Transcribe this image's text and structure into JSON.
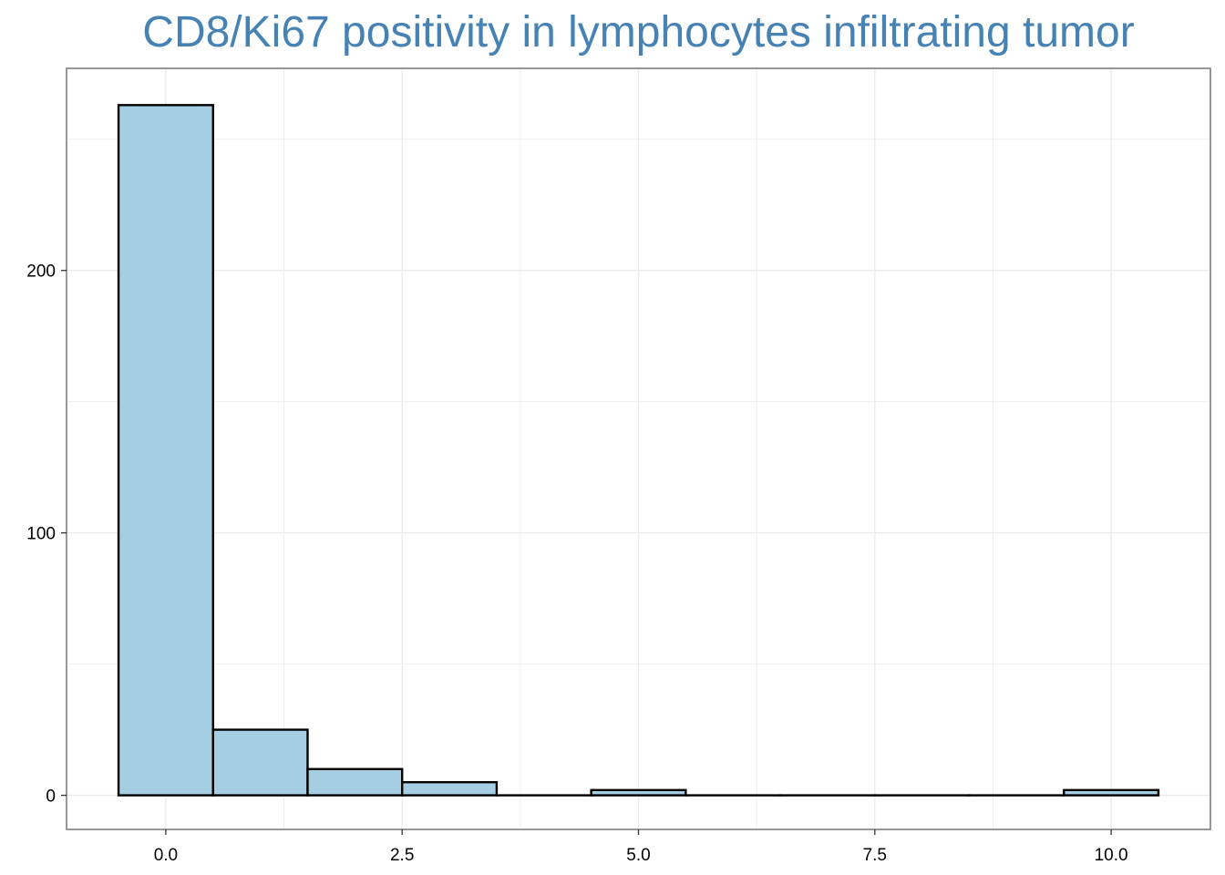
{
  "chart_data": {
    "type": "bar",
    "title": "CD8/Ki67 positivity in lymphocytes infiltrating tumor",
    "xlabel": "",
    "ylabel": "",
    "bins": [
      {
        "x": 0,
        "count": 263
      },
      {
        "x": 1,
        "count": 25
      },
      {
        "x": 2,
        "count": 10
      },
      {
        "x": 3,
        "count": 5
      },
      {
        "x": 4,
        "count": 0
      },
      {
        "x": 5,
        "count": 2
      },
      {
        "x": 6,
        "count": 0
      },
      {
        "x": 7,
        "count": 0
      },
      {
        "x": 8,
        "count": 0
      },
      {
        "x": 9,
        "count": 0
      },
      {
        "x": 10,
        "count": 2
      }
    ],
    "bin_width": 1,
    "xlim": [
      -1.05,
      11.05
    ],
    "ylim": [
      -13,
      277
    ],
    "x_ticks": [
      0,
      2.5,
      5,
      7.5,
      10
    ],
    "x_tick_labels": [
      "0.0",
      "2.5",
      "5.0",
      "7.5",
      "10.0"
    ],
    "y_ticks": [
      0,
      100,
      200
    ],
    "y_tick_labels": [
      "0",
      "100",
      "200"
    ],
    "grid": true,
    "legend": "none",
    "colors": {
      "bar_fill": "#a6cee3",
      "bar_stroke": "#000000",
      "title": "#4682b4",
      "grid": "#ebebeb",
      "panel_border": "#7f7f7f"
    }
  }
}
